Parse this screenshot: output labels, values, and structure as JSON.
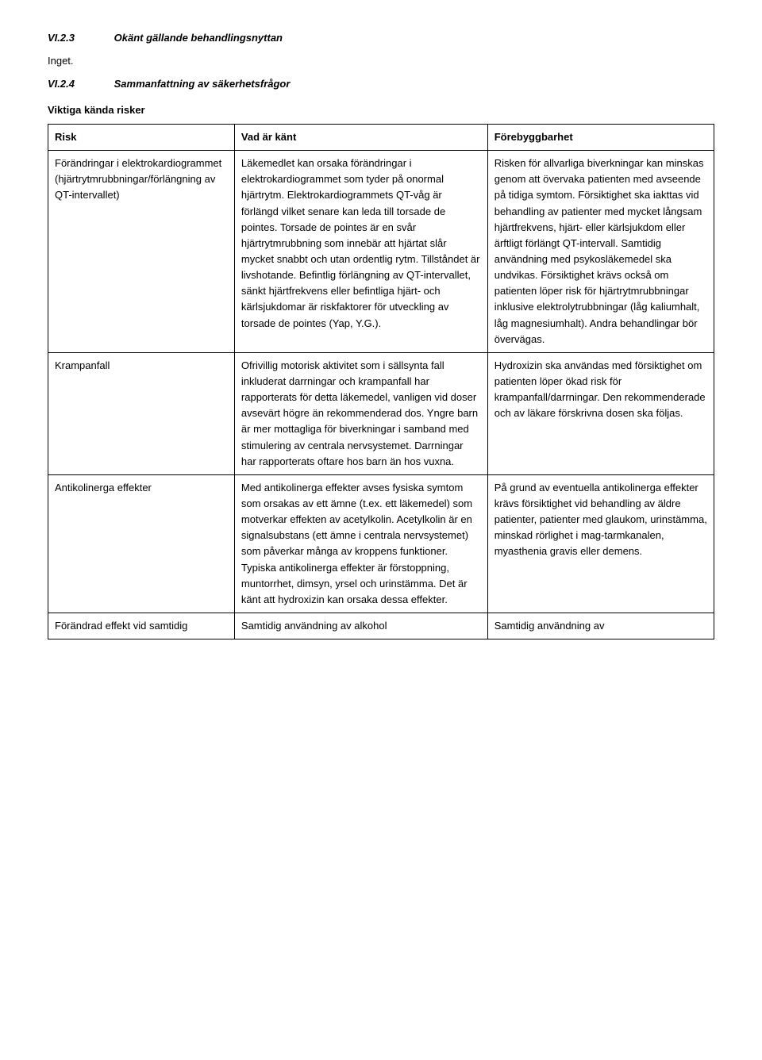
{
  "heading1": {
    "number": "VI.2.3",
    "title": "Okänt gällande behandlingsnyttan"
  },
  "p1": "Inget.",
  "heading2": {
    "number": "VI.2.4",
    "title": "Sammanfattning av säkerhetsfrågor"
  },
  "subheading": "Viktiga kända risker",
  "table": {
    "headers": {
      "risk": "Risk",
      "known": "Vad är känt",
      "prevent": "Förebyggbarhet"
    },
    "rows": [
      {
        "risk": "Förändringar i elektrokardiogrammet (hjärtrytmrubbningar/förlängning av QT-intervallet)",
        "known": "Läkemedlet kan orsaka förändringar i elektrokardiogrammet som tyder på onormal hjärtrytm. Elektrokardiogrammets QT-våg är förlängd vilket senare kan leda till torsade de pointes. Torsade de pointes är en svår hjärtrytmrubbning som innebär att hjärtat slår mycket snabbt och utan ordentlig rytm. Tillståndet är livshotande. Befintlig förlängning av QT-intervallet, sänkt hjärtfrekvens eller befintliga hjärt- och kärlsjukdomar är riskfaktorer för utveckling av torsade de pointes (Yap, Y.G.).",
        "prevent": "Risken för allvarliga biverkningar kan minskas genom att övervaka patienten med avseende på tidiga symtom. Försiktighet ska iakttas vid behandling av patienter med mycket långsam hjärtfrekvens, hjärt- eller kärlsjukdom eller ärftligt förlängt QT-intervall. Samtidig användning med psykosläkemedel ska undvikas. Försiktighet krävs också om patienten löper risk för hjärtrytmrubbningar inklusive elektrolytrubbningar (låg kaliumhalt, låg magnesiumhalt). Andra behandlingar bör övervägas."
      },
      {
        "risk": "Krampanfall",
        "known": "Ofrivillig motorisk aktivitet som i sällsynta fall inkluderat darrningar och krampanfall har rapporterats för detta läkemedel, vanligen vid doser avsevärt högre än rekommenderad dos. Yngre barn är mer mottagliga för biverkningar i samband med stimulering av centrala nervsystemet. Darrningar har rapporterats oftare hos barn än hos vuxna.",
        "prevent": "Hydroxizin ska användas med försiktighet om patienten löper ökad risk för krampanfall/darrningar. Den rekommenderade och av läkare förskrivna dosen ska följas."
      },
      {
        "risk": "Antikolinerga effekter",
        "known": "Med antikolinerga effekter avses fysiska symtom som orsakas av ett ämne (t.ex. ett läkemedel) som motverkar effekten av acetylkolin. Acetylkolin är en signalsubstans (ett ämne i centrala nervsystemet) som påverkar många av kroppens funktioner. Typiska antikolinerga effekter är förstoppning, muntorrhet, dimsyn, yrsel och urinstämma. Det är känt att hydroxizin kan orsaka dessa effekter.",
        "prevent": "På grund av eventuella antikolinerga effekter krävs försiktighet vid behandling av äldre patienter, patienter med glaukom, urinstämma, minskad rörlighet i mag-tarmkanalen, myasthenia gravis eller demens."
      },
      {
        "risk": "Förändrad effekt vid samtidig",
        "known": "Samtidig användning av alkohol",
        "prevent": "Samtidig användning av"
      }
    ]
  }
}
